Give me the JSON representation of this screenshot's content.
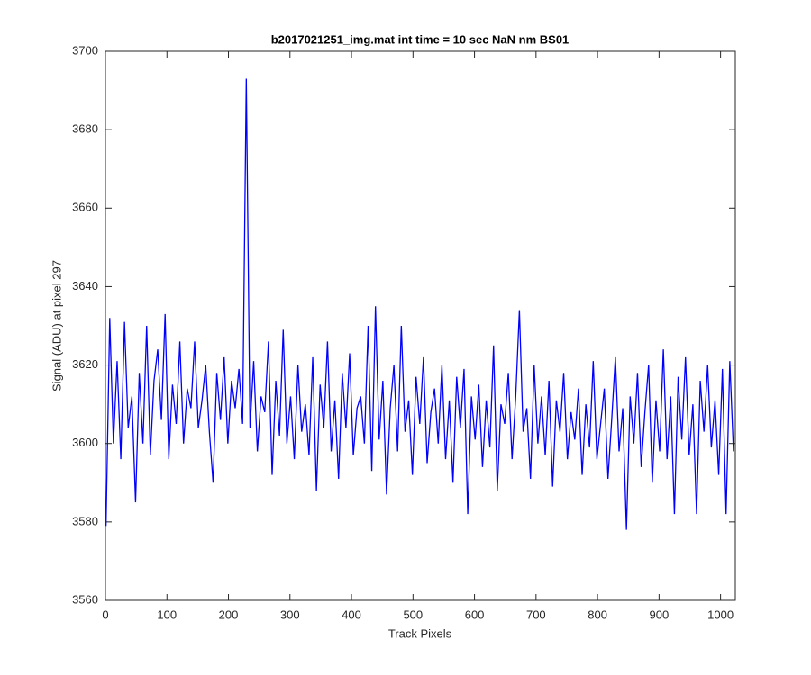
{
  "chart_data": {
    "type": "line",
    "title": "b2017021251_img.mat int time = 10 sec  NaN nm BS01",
    "xlabel": "Track Pixels",
    "ylabel": "Signal (ADU) at pixel 297",
    "color": "#0000ff",
    "xlim": [
      0,
      1024
    ],
    "ylim": [
      3560,
      3700
    ],
    "xticks": [
      0,
      100,
      200,
      300,
      400,
      500,
      600,
      700,
      800,
      900,
      1000
    ],
    "yticks": [
      3560,
      3580,
      3600,
      3620,
      3640,
      3660,
      3680,
      3700
    ],
    "grid": false,
    "x": [
      1,
      7,
      13,
      19,
      25,
      31,
      37,
      43,
      49,
      55,
      61,
      67,
      73,
      79,
      85,
      91,
      97,
      103,
      109,
      115,
      121,
      127,
      133,
      139,
      145,
      151,
      157,
      163,
      169,
      175,
      181,
      187,
      193,
      199,
      205,
      211,
      217,
      223,
      229,
      235,
      241,
      247,
      253,
      259,
      265,
      271,
      277,
      283,
      289,
      295,
      301,
      307,
      313,
      319,
      325,
      331,
      337,
      343,
      349,
      355,
      361,
      367,
      373,
      379,
      385,
      391,
      397,
      403,
      409,
      415,
      421,
      427,
      433,
      439,
      445,
      451,
      457,
      463,
      469,
      475,
      481,
      487,
      493,
      499,
      505,
      511,
      517,
      523,
      529,
      535,
      541,
      547,
      553,
      559,
      565,
      571,
      577,
      583,
      589,
      595,
      601,
      607,
      613,
      619,
      625,
      631,
      637,
      643,
      649,
      655,
      661,
      667,
      673,
      679,
      685,
      691,
      697,
      703,
      709,
      715,
      721,
      727,
      733,
      739,
      745,
      751,
      757,
      763,
      769,
      775,
      781,
      787,
      793,
      799,
      805,
      811,
      817,
      823,
      829,
      835,
      841,
      847,
      853,
      859,
      865,
      871,
      877,
      883,
      889,
      895,
      901,
      907,
      913,
      919,
      925,
      931,
      937,
      943,
      949,
      955,
      961,
      967,
      973,
      979,
      985,
      991,
      997,
      1003,
      1009,
      1015,
      1021
    ],
    "values": [
      3579,
      3632,
      3600,
      3621,
      3596,
      3631,
      3604,
      3612,
      3585,
      3618,
      3600,
      3630,
      3597,
      3616,
      3624,
      3606,
      3633,
      3596,
      3615,
      3605,
      3626,
      3600,
      3614,
      3609,
      3626,
      3604,
      3611,
      3620,
      3603,
      3590,
      3618,
      3606,
      3622,
      3600,
      3616,
      3609,
      3619,
      3605,
      3693,
      3604,
      3621,
      3598,
      3612,
      3608,
      3626,
      3592,
      3616,
      3602,
      3629,
      3600,
      3612,
      3596,
      3620,
      3603,
      3610,
      3597,
      3622,
      3588,
      3615,
      3604,
      3626,
      3598,
      3611,
      3591,
      3618,
      3604,
      3623,
      3597,
      3609,
      3612,
      3600,
      3630,
      3593,
      3635,
      3601,
      3616,
      3587,
      3609,
      3620,
      3598,
      3630,
      3603,
      3611,
      3592,
      3617,
      3605,
      3622,
      3595,
      3608,
      3614,
      3600,
      3620,
      3596,
      3611,
      3590,
      3617,
      3604,
      3619,
      3582,
      3612,
      3601,
      3615,
      3594,
      3611,
      3599,
      3625,
      3588,
      3610,
      3605,
      3618,
      3596,
      3612,
      3634,
      3603,
      3609,
      3591,
      3620,
      3600,
      3612,
      3597,
      3616,
      3589,
      3611,
      3603,
      3618,
      3596,
      3608,
      3601,
      3614,
      3592,
      3610,
      3599,
      3621,
      3596,
      3605,
      3614,
      3591,
      3606,
      3622,
      3598,
      3609,
      3578,
      3612,
      3600,
      3618,
      3594,
      3608,
      3620,
      3590,
      3611,
      3598,
      3624,
      3596,
      3612,
      3582,
      3617,
      3601,
      3622,
      3597,
      3610,
      3582,
      3616,
      3603,
      3620,
      3599,
      3611,
      3592,
      3619,
      3582,
      3621,
      3598
    ]
  }
}
